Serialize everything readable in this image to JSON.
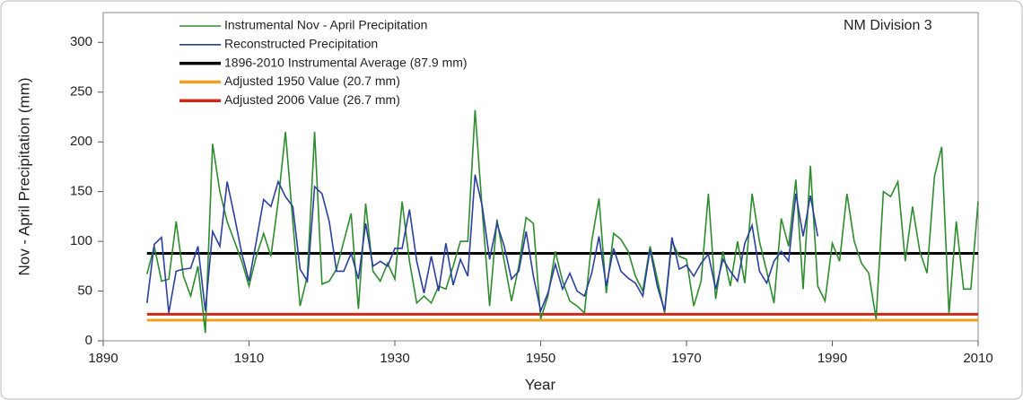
{
  "chart_data": {
    "type": "line",
    "annotation": "NM Division 3",
    "xlabel": "Year",
    "ylabel": "Nov - April Precipitation (mm)",
    "xlim": [
      1890,
      2010
    ],
    "xticks": [
      1890,
      1910,
      1930,
      1950,
      1970,
      1990,
      2010
    ],
    "ylim": [
      0,
      330
    ],
    "yticks": [
      0,
      50,
      100,
      150,
      200,
      250,
      300
    ],
    "x": [
      1896,
      1897,
      1898,
      1899,
      1900,
      1901,
      1902,
      1903,
      1904,
      1905,
      1906,
      1907,
      1908,
      1909,
      1910,
      1911,
      1912,
      1913,
      1914,
      1915,
      1916,
      1917,
      1918,
      1919,
      1920,
      1921,
      1922,
      1923,
      1924,
      1925,
      1926,
      1927,
      1928,
      1929,
      1930,
      1931,
      1932,
      1933,
      1934,
      1935,
      1936,
      1937,
      1938,
      1939,
      1940,
      1941,
      1942,
      1943,
      1944,
      1945,
      1946,
      1947,
      1948,
      1949,
      1950,
      1951,
      1952,
      1953,
      1954,
      1955,
      1956,
      1957,
      1958,
      1959,
      1960,
      1961,
      1962,
      1963,
      1964,
      1965,
      1966,
      1967,
      1968,
      1969,
      1970,
      1971,
      1972,
      1973,
      1974,
      1975,
      1976,
      1977,
      1978,
      1979,
      1980,
      1981,
      1982,
      1983,
      1984,
      1985,
      1986,
      1987,
      1988,
      1989,
      1990,
      1991,
      1992,
      1993,
      1994,
      1995,
      1996,
      1997,
      1998,
      1999,
      2000,
      2001,
      2002,
      2003,
      2004,
      2005,
      2006,
      2007,
      2008,
      2009,
      2010
    ],
    "series": [
      {
        "name": "Instrumental Nov - April Precipitation",
        "color": "#2e8b2e",
        "values": [
          67,
          95,
          60,
          62,
          120,
          65,
          45,
          75,
          8,
          198,
          150,
          120,
          100,
          80,
          55,
          85,
          108,
          85,
          140,
          210,
          120,
          35,
          65,
          210,
          57,
          60,
          72,
          100,
          128,
          32,
          138,
          70,
          60,
          78,
          62,
          140,
          80,
          38,
          45,
          38,
          55,
          52,
          75,
          100,
          100,
          232,
          130,
          35,
          122,
          80,
          40,
          75,
          124,
          118,
          22,
          45,
          90,
          60,
          40,
          35,
          28,
          100,
          143,
          48,
          108,
          102,
          90,
          65,
          50,
          95,
          62,
          28,
          100,
          85,
          82,
          35,
          60,
          148,
          42,
          90,
          55,
          100,
          58,
          148,
          100,
          70,
          38,
          123,
          95,
          162,
          52,
          176,
          55,
          40,
          98,
          80,
          148,
          100,
          78,
          68,
          22,
          150,
          145,
          160,
          80,
          135,
          90,
          68,
          165,
          195,
          27,
          120,
          52,
          52,
          140
        ]
      },
      {
        "name": "Reconstructed Precipitation",
        "color": "#2a3f9e",
        "values": [
          38,
          97,
          104,
          28,
          70,
          72,
          73,
          95,
          30,
          110,
          95,
          160,
          125,
          88,
          60,
          100,
          142,
          135,
          160,
          145,
          135,
          72,
          60,
          155,
          148,
          120,
          70,
          70,
          88,
          62,
          118,
          75,
          80,
          75,
          93,
          93,
          132,
          80,
          48,
          85,
          50,
          98,
          56,
          82,
          65,
          167,
          135,
          82,
          118,
          95,
          62,
          70,
          110,
          65,
          30,
          48,
          77,
          52,
          68,
          50,
          45,
          68,
          105,
          55,
          93,
          70,
          63,
          58,
          45,
          92,
          55,
          30,
          104,
          72,
          76,
          65,
          78,
          87,
          52,
          82,
          70,
          60,
          98,
          116,
          70,
          58,
          80,
          90,
          80,
          148,
          105,
          146,
          105,
          null,
          null,
          null,
          null,
          null,
          null,
          null,
          null,
          null,
          null,
          null,
          null,
          null,
          null,
          null,
          null,
          null,
          null,
          null,
          null,
          null,
          null
        ]
      }
    ],
    "reference_lines": [
      {
        "name": "1896-2010 Instrumental Average (87.9 mm)",
        "value": 87.9,
        "color": "#000000"
      },
      {
        "name": "Adjusted 1950 Value (20.7 mm)",
        "value": 20.7,
        "color": "#f0a020"
      },
      {
        "name": "Adjusted 2006 Value (26.7 mm)",
        "value": 26.7,
        "color": "#cc2a1a"
      }
    ]
  }
}
